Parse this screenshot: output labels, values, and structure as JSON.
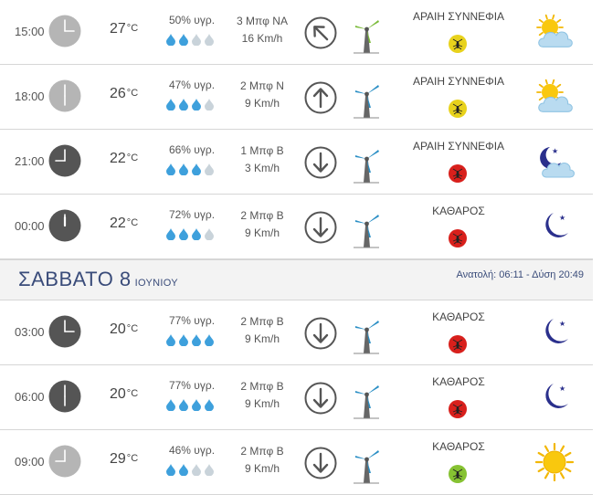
{
  "rows_before": [
    {
      "time": "15:00",
      "clock_hour": 15,
      "clock_style": "light",
      "temp": "27",
      "humidity": "50% υγρ.",
      "drops_filled": 2,
      "wind_bf": "3 Μπφ ΝΑ",
      "wind_speed": "16 Km/h",
      "wind_arrow_deg": 315,
      "turbine_color": "#7bbb3a",
      "condition": "ΑΡΑΙΗ ΣΥΝΝΕΦΙΑ",
      "mosquito_color": "#e8d21c",
      "weather_icon": "partly-cloudy-day-icon"
    },
    {
      "time": "18:00",
      "clock_hour": 18,
      "clock_style": "light",
      "temp": "26",
      "humidity": "47% υγρ.",
      "drops_filled": 3,
      "wind_bf": "2 Μπφ Ν",
      "wind_speed": "9 Km/h",
      "wind_arrow_deg": 0,
      "turbine_color": "#2b8fc5",
      "condition": "ΑΡΑΙΗ ΣΥΝΝΕΦΙΑ",
      "mosquito_color": "#e8d21c",
      "weather_icon": "partly-cloudy-day-icon"
    },
    {
      "time": "21:00",
      "clock_hour": 21,
      "clock_style": "dark",
      "temp": "22",
      "humidity": "66% υγρ.",
      "drops_filled": 3,
      "wind_bf": "1 Μπφ Β",
      "wind_speed": "3 Km/h",
      "wind_arrow_deg": 180,
      "turbine_color": "#2b8fc5",
      "condition": "ΑΡΑΙΗ ΣΥΝΝΕΦΙΑ",
      "mosquito_color": "#d8201c",
      "weather_icon": "partly-cloudy-night-icon"
    },
    {
      "time": "00:00",
      "clock_hour": 0,
      "clock_style": "dark",
      "temp": "22",
      "humidity": "72% υγρ.",
      "drops_filled": 3,
      "wind_bf": "2 Μπφ Β",
      "wind_speed": "9 Km/h",
      "wind_arrow_deg": 180,
      "turbine_color": "#2b8fc5",
      "condition": "ΚΑΘΑΡΟΣ",
      "mosquito_color": "#d8201c",
      "weather_icon": "clear-night-icon"
    }
  ],
  "day_header": {
    "name": "ΣΑΒΒΑΤΟ 8",
    "month": "ΙΟΥΝΙΟΥ",
    "sun_times": "Ανατολή: 06:11 - Δύση 20:49"
  },
  "rows_after": [
    {
      "time": "03:00",
      "clock_hour": 3,
      "clock_style": "dark",
      "temp": "20",
      "humidity": "77% υγρ.",
      "drops_filled": 4,
      "wind_bf": "2 Μπφ Β",
      "wind_speed": "9 Km/h",
      "wind_arrow_deg": 180,
      "turbine_color": "#2b8fc5",
      "condition": "ΚΑΘΑΡΟΣ",
      "mosquito_color": "#d8201c",
      "weather_icon": "clear-night-icon"
    },
    {
      "time": "06:00",
      "clock_hour": 6,
      "clock_style": "dark",
      "temp": "20",
      "humidity": "77% υγρ.",
      "drops_filled": 4,
      "wind_bf": "2 Μπφ Β",
      "wind_speed": "9 Km/h",
      "wind_arrow_deg": 180,
      "turbine_color": "#2b8fc5",
      "condition": "ΚΑΘΑΡΟΣ",
      "mosquito_color": "#d8201c",
      "weather_icon": "clear-night-icon"
    },
    {
      "time": "09:00",
      "clock_hour": 9,
      "clock_style": "light",
      "temp": "29",
      "humidity": "46% υγρ.",
      "drops_filled": 2,
      "wind_bf": "2 Μπφ Β",
      "wind_speed": "9 Km/h",
      "wind_arrow_deg": 180,
      "turbine_color": "#2b8fc5",
      "condition": "ΚΑΘΑΡΟΣ",
      "mosquito_color": "#86c232",
      "weather_icon": "sunny-icon"
    }
  ],
  "temp_unit": "°C"
}
